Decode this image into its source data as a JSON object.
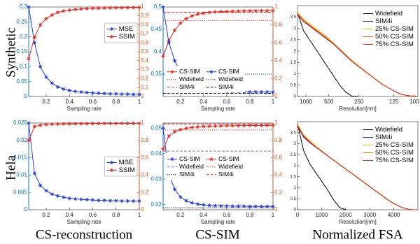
{
  "row_labels": [
    "Synthetic",
    "Hela"
  ],
  "column_labels": [
    "CS-reconstruction",
    "CS-SIM",
    "Normalized FSA"
  ],
  "chart_data": [
    {
      "type": "line",
      "xlabel": "Sampling rate",
      "x": [
        0.05,
        0.1,
        0.15,
        0.2,
        0.25,
        0.3,
        0.35,
        0.4,
        0.45,
        0.5,
        0.55,
        0.6,
        0.65,
        0.7,
        0.75,
        0.8,
        0.85,
        0.9,
        0.95,
        1
      ],
      "xlim": [
        0.05,
        1
      ],
      "xticks": [
        0.2,
        0.4,
        0.6,
        0.8,
        1
      ],
      "ylim": [
        0,
        0.3
      ],
      "yticks": [
        0,
        0.05,
        0.1,
        0.15,
        0.2,
        0.25,
        0.3
      ],
      "ycolor": "#0072bd",
      "y2lim": [
        0,
        1
      ],
      "y2ticks": [
        0,
        0.1,
        0.2,
        0.3,
        0.4,
        0.5,
        0.6,
        0.7,
        0.8,
        0.9,
        1
      ],
      "y2color": "#d95319",
      "legend": "upper right",
      "series": [
        {
          "name": "MSE",
          "color": "#1f3bd6",
          "marker": "star",
          "values": [
            0.3,
            0.18,
            0.1,
            0.065,
            0.045,
            0.032,
            0.025,
            0.02,
            0.017,
            0.015,
            0.013,
            0.012,
            0.011,
            0.01,
            0.009,
            0.009,
            0.008,
            0.008,
            0.007,
            0.007
          ]
        },
        {
          "name": "SSIM",
          "color": "#e8231b",
          "marker": "star",
          "axis": "y2",
          "values": [
            0.42,
            0.66,
            0.8,
            0.87,
            0.91,
            0.94,
            0.955,
            0.965,
            0.972,
            0.978,
            0.982,
            0.985,
            0.987,
            0.989,
            0.99,
            0.991,
            0.992,
            0.993,
            0.994,
            0.995
          ]
        }
      ]
    },
    {
      "type": "line",
      "xlabel": "Sampling rate",
      "x": [
        0.05,
        0.1,
        0.15,
        0.2,
        0.25,
        0.3,
        0.35,
        0.4,
        0.45,
        0.5,
        0.55,
        0.6,
        0.65,
        0.7,
        0.75,
        0.8,
        0.85,
        0.9,
        0.95,
        1
      ],
      "xlim": [
        0.05,
        1
      ],
      "xticks": [
        0.2,
        0.4,
        0.6,
        0.8,
        1
      ],
      "ylim": [
        0.3,
        0.5
      ],
      "yticks": [
        0.35,
        0.4,
        0.45,
        0.5
      ],
      "ycolor": "#0072bd",
      "y2lim": [
        0,
        1
      ],
      "y2ticks": [
        0,
        0.2,
        0.4,
        0.6,
        0.8,
        1
      ],
      "y2color": "#d95319",
      "legend": "lower left",
      "legend_columns": 2,
      "series": [
        {
          "name": "CS-SIM",
          "color": "#e8231b",
          "marker": "star",
          "axis": "y2",
          "values": [
            0.45,
            0.62,
            0.74,
            0.82,
            0.87,
            0.9,
            0.92,
            0.93,
            0.94,
            0.945,
            0.948,
            0.95,
            0.952,
            0.954,
            0.955,
            0.956,
            0.957,
            0.958,
            0.958,
            0.959
          ]
        },
        {
          "name": "CS-SIM",
          "color": "#1f3bd6",
          "marker": "star",
          "values": [
            0.5,
            0.42,
            0.38,
            0.355,
            0.34,
            0.33,
            0.323,
            0.319,
            0.316,
            0.314,
            0.313,
            0.312,
            0.311,
            0.311,
            0.31,
            0.31,
            0.31,
            0.31,
            0.31,
            0.31
          ]
        },
        {
          "name": "Widefield",
          "color": "#e8231b",
          "dash": "dotted",
          "axis": "y2",
          "value": 0.85
        },
        {
          "name": "Widefield",
          "color": "#1f3bd6",
          "dash": "dotted",
          "value": 0.35
        },
        {
          "name": "SIM4i",
          "color": "#e8231b",
          "dash": "dashed",
          "axis": "y2",
          "value": 0.94
        },
        {
          "name": "SIM4i",
          "color": "#10105a",
          "dash": "dashed",
          "value": 0.307
        }
      ]
    },
    {
      "type": "line",
      "xlabel": "Resolution[nm]",
      "x": [
        0,
        0.05,
        0.1,
        0.15,
        0.2,
        0.25,
        0.3,
        0.35,
        0.4,
        0.45,
        0.5,
        0.55,
        0.6,
        0.65,
        0.7,
        0.75,
        0.8,
        0.85,
        0.9,
        0.95,
        1
      ],
      "xlim": [
        0,
        1
      ],
      "xticks": [
        {
          "value": 0.07,
          "label": "1000"
        },
        {
          "value": 0.26,
          "label": "500"
        },
        {
          "value": 0.51,
          "label": "250"
        },
        {
          "value": 0.8,
          "label": "125"
        },
        {
          "value": 0.97,
          "label": "100"
        }
      ],
      "ylim": [
        0,
        4
      ],
      "yticks": [
        0,
        0.5,
        1,
        1.5,
        2,
        2.5,
        3,
        3.5
      ],
      "legend": "upper right",
      "series": [
        {
          "name": "Widefield",
          "color": "#000000",
          "values": [
            3.7,
            2.9,
            2.5,
            2.1,
            1.7,
            1.3,
            0.9,
            0.5,
            0.2,
            0.02,
            0,
            null,
            null,
            null,
            null,
            null,
            null,
            null,
            null,
            null,
            null
          ]
        },
        {
          "name": "SIM4i",
          "color": "#1f2fc8",
          "values": [
            3.6,
            3.3,
            3.1,
            2.9,
            2.7,
            2.5,
            2.3,
            2.05,
            1.8,
            1.55,
            1.35,
            1.15,
            0.95,
            0.75,
            0.55,
            0.4,
            0.25,
            0.12,
            0.05,
            0.02,
            0
          ]
        },
        {
          "name": "25% CS-SIM",
          "color": "#f5b700",
          "values": [
            3.7,
            3.4,
            3.2,
            3.0,
            2.8,
            2.6,
            2.35,
            2.1,
            1.85,
            1.6,
            1.38,
            1.17,
            0.96,
            0.76,
            0.56,
            0.4,
            0.25,
            0.12,
            0.05,
            0.02,
            0
          ]
        },
        {
          "name": "50% CS-SIM",
          "color": "#e07b00",
          "values": [
            3.65,
            3.35,
            3.15,
            2.95,
            2.75,
            2.55,
            2.32,
            2.07,
            1.82,
            1.57,
            1.36,
            1.16,
            0.95,
            0.75,
            0.55,
            0.4,
            0.25,
            0.12,
            0.05,
            0.02,
            0
          ]
        },
        {
          "name": "75% CS-SIM",
          "color": "#e8231b",
          "values": [
            3.62,
            3.32,
            3.12,
            2.92,
            2.72,
            2.52,
            2.31,
            2.06,
            1.81,
            1.56,
            1.35,
            1.15,
            0.95,
            0.75,
            0.55,
            0.4,
            0.25,
            0.12,
            0.05,
            0.02,
            0
          ]
        }
      ]
    },
    {
      "type": "line",
      "xlabel": "Sampling rate",
      "x": [
        0.05,
        0.1,
        0.15,
        0.2,
        0.25,
        0.3,
        0.35,
        0.4,
        0.45,
        0.5,
        0.55,
        0.6,
        0.65,
        0.7,
        0.75,
        0.8,
        0.85,
        0.9,
        0.95,
        1
      ],
      "xlim": [
        0.05,
        1
      ],
      "xticks": [
        0.2,
        0.4,
        0.6,
        0.8,
        1
      ],
      "ylim": [
        0,
        0.025
      ],
      "yticks": [
        0,
        0.005,
        0.01,
        0.015,
        0.02,
        0.025
      ],
      "ycolor": "#0072bd",
      "y2lim": [
        0,
        1
      ],
      "y2ticks": [
        0,
        0.2,
        0.4,
        0.6,
        0.8,
        1
      ],
      "y2color": "#d95319",
      "legend": "center right",
      "series": [
        {
          "name": "MSE",
          "color": "#1f3bd6",
          "marker": "star",
          "values": [
            0.025,
            0.0105,
            0.007,
            0.0055,
            0.0045,
            0.004,
            0.0036,
            0.0033,
            0.0031,
            0.003,
            0.0029,
            0.0028,
            0.0027,
            0.0027,
            0.0026,
            0.0026,
            0.0025,
            0.0025,
            0.0025,
            0.0025
          ]
        },
        {
          "name": "SSIM",
          "color": "#e8231b",
          "marker": "star",
          "axis": "y2",
          "values": [
            0.8,
            0.96,
            0.975,
            0.982,
            0.986,
            0.988,
            0.99,
            0.991,
            0.992,
            0.993,
            0.993,
            0.994,
            0.994,
            0.995,
            0.995,
            0.995,
            0.996,
            0.996,
            0.996,
            0.996
          ]
        }
      ]
    },
    {
      "type": "line",
      "xlabel": "Sampling rate",
      "x": [
        0.05,
        0.1,
        0.15,
        0.2,
        0.25,
        0.3,
        0.35,
        0.4,
        0.45,
        0.5,
        0.55,
        0.6,
        0.65,
        0.7,
        0.75,
        0.8,
        0.85,
        0.9,
        0.95,
        1
      ],
      "xlim": [
        0.05,
        1
      ],
      "xticks": [
        0.2,
        0.4,
        0.6,
        0.8,
        1
      ],
      "ylim": [
        0.018,
        0.052
      ],
      "yticks": [
        0.02,
        0.03,
        0.04,
        0.05
      ],
      "ycolor": "#0072bd",
      "y2lim": [
        0,
        1
      ],
      "y2ticks": [
        0,
        0.2,
        0.4,
        0.6,
        0.8,
        1
      ],
      "y2color": "#d95319",
      "legend": "center left",
      "legend_columns": 2,
      "series": [
        {
          "name": "CS-SIM",
          "color": "#1f3bd6",
          "marker": "star",
          "values": [
            0.05,
            0.032,
            0.026,
            0.023,
            0.0215,
            0.0207,
            0.0202,
            0.0199,
            0.0197,
            0.0196,
            0.0195,
            0.0195,
            0.0194,
            0.0194,
            0.0194,
            0.0193,
            0.0193,
            0.0193,
            0.0193,
            0.0193
          ]
        },
        {
          "name": "CS-SIM",
          "color": "#e8231b",
          "marker": "star",
          "axis": "y2",
          "values": [
            0.7,
            0.85,
            0.9,
            0.925,
            0.94,
            0.95,
            0.955,
            0.96,
            0.963,
            0.965,
            0.967,
            0.968,
            0.969,
            0.97,
            0.971,
            0.972,
            0.972,
            0.973,
            0.973,
            0.974
          ]
        },
        {
          "name": "Widefield",
          "color": "#6f7fe0",
          "dash": "dashed",
          "value": 0.041
        },
        {
          "name": "Widefield",
          "color": "#e8231b",
          "dash": "dotted",
          "axis": "y2",
          "value": 0.92
        },
        {
          "name": "SIM4i",
          "color": "#10105a",
          "dash": "dotted",
          "value": 0.0188
        },
        {
          "name": "SIM4i",
          "color": "#e8231b",
          "dash": "dashed",
          "axis": "y2",
          "value": 0.99
        }
      ]
    },
    {
      "type": "line",
      "xlabel": "Resolution[nm]",
      "x": [
        0,
        250,
        500,
        750,
        1000,
        1250,
        1500,
        1750,
        2000,
        2250,
        2500,
        2750,
        3000,
        3250,
        3500,
        3750,
        4000,
        4250,
        4500,
        4750,
        5000
      ],
      "xlim": [
        0,
        5000
      ],
      "xticks": [
        0,
        1000,
        2000,
        3000,
        4000
      ],
      "ylim": [
        0,
        4
      ],
      "yticks": [
        0,
        0.5,
        1,
        1.5,
        2,
        2.5,
        3,
        3.5
      ],
      "legend": "upper right",
      "series": [
        {
          "name": "Widefield",
          "color": "#000000",
          "values": [
            3.9,
            2.7,
            2.1,
            1.7,
            1.3,
            0.9,
            0.45,
            0.1,
            0,
            null,
            null,
            null,
            null,
            null,
            null,
            null,
            null,
            null,
            null,
            null,
            null
          ]
        },
        {
          "name": "SIM4i",
          "color": "#1f2fc8",
          "values": [
            3.8,
            3.3,
            3.05,
            2.85,
            2.65,
            2.45,
            2.25,
            2.05,
            1.85,
            1.65,
            1.45,
            1.25,
            1.05,
            0.85,
            0.65,
            0.45,
            0.28,
            0.14,
            0.05,
            0,
            0
          ]
        },
        {
          "name": "25% CS-SIM",
          "color": "#f5b700",
          "values": [
            3.9,
            3.4,
            3.15,
            2.9,
            2.68,
            2.46,
            2.26,
            2.06,
            1.86,
            1.66,
            1.46,
            1.26,
            1.06,
            0.86,
            0.66,
            0.46,
            0.29,
            0.14,
            0.05,
            0,
            0
          ]
        },
        {
          "name": "50% CS-SIM",
          "color": "#e07b00",
          "values": [
            3.85,
            3.36,
            3.1,
            2.87,
            2.66,
            2.45,
            2.25,
            2.05,
            1.85,
            1.65,
            1.45,
            1.25,
            1.05,
            0.85,
            0.65,
            0.45,
            0.28,
            0.14,
            0.05,
            0,
            0
          ]
        },
        {
          "name": "75% CS-SIM",
          "color": "#e8231b",
          "values": [
            3.82,
            3.35,
            3.08,
            2.86,
            2.66,
            2.45,
            2.25,
            2.05,
            1.85,
            1.65,
            1.45,
            1.25,
            1.05,
            0.85,
            0.65,
            0.45,
            0.28,
            0.14,
            0.05,
            0,
            0
          ]
        }
      ]
    }
  ]
}
